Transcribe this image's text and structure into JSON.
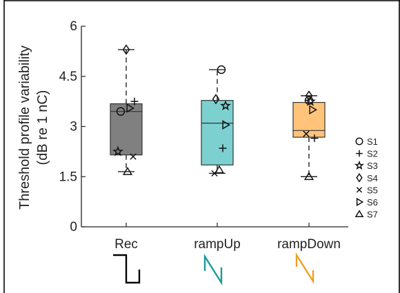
{
  "chart_data": {
    "type": "box",
    "ylabel": "Threshold profile variability",
    "ylabel2": "(dB re 1 nC)",
    "ylim": [
      0,
      6
    ],
    "yticks": [
      0,
      1.5,
      3,
      4.5,
      6
    ],
    "ytick_labels": [
      "0",
      "1.5",
      "3",
      "4.5",
      "6"
    ],
    "categories": [
      "Rec",
      "rampUp",
      "rampDown"
    ],
    "box_colors": [
      "#808080",
      "#7dd0d0",
      "#ffc47a"
    ],
    "waveform_colors": [
      "#000000",
      "#1a9a9a",
      "#f0a020"
    ],
    "waveforms": [
      "rectangular-pulse-icon",
      "ramp-up-pulse-icon",
      "ramp-down-pulse-icon"
    ],
    "subjects": [
      "S1",
      "S2",
      "S3",
      "S4",
      "S5",
      "S6",
      "S7"
    ],
    "markers": [
      "circle",
      "plus",
      "star",
      "diamond",
      "x",
      "triangle-right",
      "triangle-up"
    ],
    "boxes": [
      {
        "q1": 2.15,
        "median": 3.45,
        "q3": 3.68,
        "whisker_low": 1.65,
        "whisker_high": 5.3
      },
      {
        "q1": 1.85,
        "median": 3.1,
        "q3": 3.78,
        "whisker_low": 1.6,
        "whisker_high": 4.7
      },
      {
        "q1": 2.68,
        "median": 2.88,
        "q3": 3.72,
        "whisker_low": 1.5,
        "whisker_high": 3.92
      }
    ],
    "points": [
      {
        "cat": 0,
        "subject": "S1",
        "dx": -8,
        "y": 3.45
      },
      {
        "cat": 0,
        "subject": "S2",
        "dx": 12,
        "y": 3.75
      },
      {
        "cat": 0,
        "subject": "S3",
        "dx": -12,
        "y": 2.25
      },
      {
        "cat": 0,
        "subject": "S4",
        "dx": 0,
        "y": 5.3
      },
      {
        "cat": 0,
        "subject": "S5",
        "dx": 10,
        "y": 2.1
      },
      {
        "cat": 0,
        "subject": "S6",
        "dx": 5,
        "y": 3.55
      },
      {
        "cat": 0,
        "subject": "S7",
        "dx": 2,
        "y": 1.65
      },
      {
        "cat": 1,
        "subject": "S1",
        "dx": 6,
        "y": 4.7
      },
      {
        "cat": 1,
        "subject": "S2",
        "dx": 8,
        "y": 2.35
      },
      {
        "cat": 1,
        "subject": "S3",
        "dx": 12,
        "y": 3.62
      },
      {
        "cat": 1,
        "subject": "S4",
        "dx": -2,
        "y": 3.82
      },
      {
        "cat": 1,
        "subject": "S5",
        "dx": -4,
        "y": 1.6
      },
      {
        "cat": 1,
        "subject": "S6",
        "dx": 12,
        "y": 3.05
      },
      {
        "cat": 1,
        "subject": "S7",
        "dx": 3,
        "y": 1.7
      },
      {
        "cat": 2,
        "subject": "S1",
        "dx": 0,
        "y": 3.78
      },
      {
        "cat": 2,
        "subject": "S2",
        "dx": 8,
        "y": 2.65
      },
      {
        "cat": 2,
        "subject": "S3",
        "dx": 2,
        "y": 3.75
      },
      {
        "cat": 2,
        "subject": "S4",
        "dx": 0,
        "y": 3.92
      },
      {
        "cat": 2,
        "subject": "S5",
        "dx": -4,
        "y": 2.78
      },
      {
        "cat": 2,
        "subject": "S6",
        "dx": 5,
        "y": 3.5
      },
      {
        "cat": 2,
        "subject": "S7",
        "dx": 0,
        "y": 1.5
      }
    ]
  }
}
